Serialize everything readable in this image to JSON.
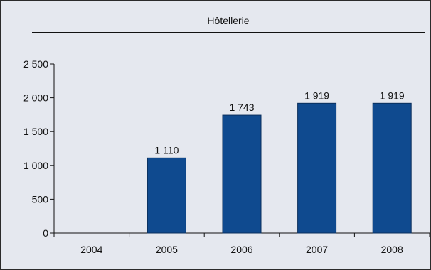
{
  "chart_data": {
    "type": "bar",
    "title": "Hôtellerie",
    "categories": [
      "2004",
      "2005",
      "2006",
      "2007",
      "2008"
    ],
    "values": [
      null,
      1110,
      1743,
      1919,
      1919
    ],
    "value_labels": [
      "",
      "1 110",
      "1 743",
      "1 919",
      "1 919"
    ],
    "ylim": [
      0,
      2500
    ],
    "yticks": [
      0,
      500,
      1000,
      1500,
      2000,
      2500
    ],
    "ytick_labels": [
      "0",
      "500",
      "1 000",
      "1 500",
      "2 000",
      "2 500"
    ],
    "grid": false,
    "bar_color": "#0f4a8f",
    "background_color": "#e5e8ef"
  }
}
